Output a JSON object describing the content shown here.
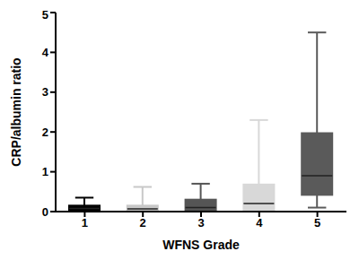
{
  "chart_data": {
    "type": "box",
    "x_label": "WFNS Grade",
    "y_label": "CRP/albumin ratio",
    "categories": [
      "1",
      "2",
      "3",
      "4",
      "5"
    ],
    "boxes": [
      {
        "min": 0.02,
        "q1": 0.0,
        "median": 0.08,
        "q3": 0.15,
        "max": 0.35
      },
      {
        "min": 0.0,
        "q1": 0.02,
        "median": 0.07,
        "q3": 0.15,
        "max": 0.62
      },
      {
        "min": 0.0,
        "q1": 0.02,
        "median": 0.1,
        "q3": 0.3,
        "max": 0.7
      },
      {
        "min": 0.0,
        "q1": 0.03,
        "median": 0.2,
        "q3": 0.68,
        "max": 2.3
      },
      {
        "min": 0.1,
        "q1": 0.42,
        "median": 0.9,
        "q3": 1.97,
        "max": 4.5
      }
    ],
    "colors": [
      "#000000",
      "#c8c8c8",
      "#555555",
      "#d8d8d8",
      "#5a5a5a"
    ],
    "ylim": [
      0,
      5
    ],
    "yticks": [
      0,
      1,
      2,
      3,
      4,
      5
    ],
    "grid": false
  }
}
